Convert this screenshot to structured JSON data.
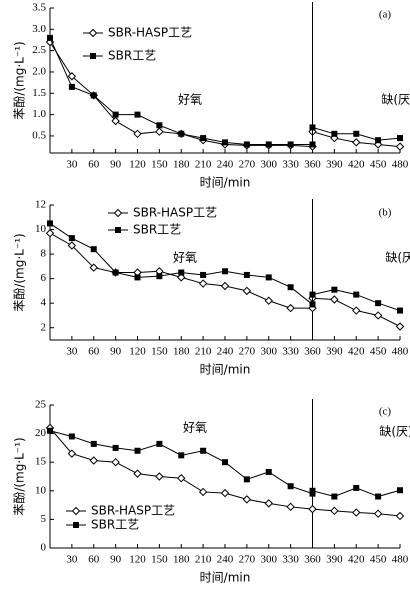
{
  "chart_data": [
    {
      "type": "line",
      "panel_label": "(a)",
      "x_label": "时间/min",
      "y_label": "苯酚/(mg·L⁻¹)",
      "annotations": [
        "好氧",
        "缺(厌)氧"
      ],
      "vline": 360,
      "legend": "upper center",
      "xlim": [
        0,
        480
      ],
      "xticks": [
        30,
        60,
        90,
        120,
        150,
        180,
        210,
        240,
        270,
        300,
        330,
        360,
        390,
        420,
        450,
        480
      ],
      "ylim": [
        0.1,
        3.5
      ],
      "yticks": [
        0.5,
        {
          "value": 1,
          "label": "1.0"
        },
        1.5,
        {
          "value": 2,
          "label": "2.0"
        },
        2.5,
        {
          "value": 3,
          "label": "3.0"
        },
        3.5
      ],
      "series": [
        {
          "name": "SBR-HASP工艺",
          "color": "#000000",
          "marker": "diamond",
          "x": [
            0,
            30,
            60,
            90,
            120,
            150,
            180,
            210,
            240,
            270,
            300,
            330,
            360,
            360,
            390,
            420,
            450,
            480
          ],
          "values": [
            2.7,
            1.9,
            1.45,
            0.85,
            0.55,
            0.6,
            0.55,
            0.4,
            0.3,
            0.28,
            0.28,
            0.28,
            0.25,
            0.6,
            0.45,
            0.35,
            0.3,
            0.25
          ]
        },
        {
          "name": "SBR工艺",
          "color": "#000000",
          "marker": "square",
          "x": [
            0,
            30,
            60,
            90,
            120,
            150,
            180,
            210,
            240,
            270,
            300,
            330,
            360,
            360,
            390,
            420,
            450,
            480
          ],
          "values": [
            2.8,
            1.65,
            1.45,
            1.0,
            1.0,
            0.75,
            0.55,
            0.45,
            0.35,
            0.3,
            0.3,
            0.3,
            0.3,
            0.7,
            0.55,
            0.55,
            0.4,
            0.45
          ]
        }
      ]
    },
    {
      "type": "line",
      "panel_label": "(b)",
      "x_label": "时间/min",
      "y_label": "苯酚/(mg·L⁻¹)",
      "annotations": [
        "好氧",
        "缺(厌)氧"
      ],
      "vline": 360,
      "legend": "upper left",
      "xlim": [
        0,
        480
      ],
      "xticks": [
        30,
        60,
        90,
        120,
        150,
        180,
        210,
        240,
        270,
        300,
        330,
        360,
        390,
        420,
        450,
        480
      ],
      "ylim": [
        1,
        12
      ],
      "yticks": [
        2,
        4,
        6,
        8,
        10,
        12
      ],
      "series": [
        {
          "name": "SBR-HASP工艺",
          "color": "#000000",
          "marker": "diamond",
          "x": [
            0,
            30,
            60,
            90,
            120,
            150,
            180,
            210,
            240,
            270,
            300,
            330,
            360,
            360,
            390,
            420,
            450,
            480
          ],
          "values": [
            9.7,
            8.7,
            6.9,
            6.5,
            6.5,
            6.6,
            6.1,
            5.6,
            5.4,
            5.0,
            4.2,
            3.6,
            3.6,
            4.4,
            4.3,
            3.4,
            3.0,
            2.1
          ]
        },
        {
          "name": "SBR工艺",
          "color": "#000000",
          "marker": "square",
          "x": [
            0,
            30,
            60,
            90,
            120,
            150,
            180,
            210,
            240,
            270,
            300,
            330,
            360,
            360,
            390,
            420,
            450,
            480
          ],
          "values": [
            10.5,
            9.3,
            8.4,
            6.5,
            6.1,
            6.2,
            6.5,
            6.3,
            6.6,
            6.3,
            6.1,
            5.3,
            3.9,
            4.7,
            5.1,
            4.7,
            4.0,
            3.4
          ]
        }
      ]
    },
    {
      "type": "line",
      "panel_label": "(c)",
      "x_label": "时间/min",
      "y_label": "苯酚/(mg·L⁻¹)",
      "annotations": [
        "好氧",
        "缺(厌)氧"
      ],
      "vline": 360,
      "legend": "lower left",
      "xlim": [
        0,
        480
      ],
      "xticks": [
        30,
        60,
        90,
        120,
        150,
        180,
        210,
        240,
        270,
        300,
        330,
        360,
        390,
        420,
        450,
        480
      ],
      "ylim": [
        0,
        25
      ],
      "yticks": [
        0,
        5,
        10,
        15,
        20,
        25
      ],
      "series": [
        {
          "name": "SBR-HASP工艺",
          "color": "#000000",
          "marker": "diamond",
          "x": [
            0,
            30,
            60,
            90,
            120,
            150,
            180,
            210,
            240,
            270,
            300,
            330,
            360,
            390,
            420,
            450,
            480
          ],
          "values": [
            21,
            16.5,
            15.3,
            15,
            13,
            12.5,
            12.2,
            9.8,
            9.6,
            8.5,
            7.8,
            7.2,
            6.8,
            6.5,
            6.2,
            6.0,
            5.6
          ]
        },
        {
          "name": "SBR工艺",
          "color": "#000000",
          "marker": "square",
          "x": [
            0,
            30,
            60,
            90,
            120,
            150,
            180,
            210,
            240,
            270,
            300,
            330,
            360,
            360,
            390,
            420,
            450,
            480
          ],
          "values": [
            20.5,
            19.5,
            18.2,
            17.5,
            17,
            18.2,
            16.2,
            17,
            15,
            12,
            13.3,
            10.8,
            9.5,
            10,
            9,
            10.5,
            9,
            10.1
          ]
        }
      ]
    }
  ]
}
